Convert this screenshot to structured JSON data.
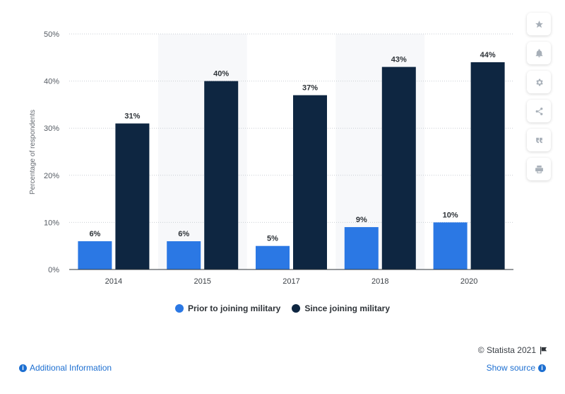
{
  "chart_data": {
    "type": "bar",
    "categories": [
      "2014",
      "2015",
      "2017",
      "2018",
      "2020"
    ],
    "series": [
      {
        "name": "Prior to joining military",
        "values": [
          6,
          6,
          5,
          9,
          10
        ],
        "color": "#2b78e4"
      },
      {
        "name": "Since joining military",
        "values": [
          31,
          40,
          37,
          43,
          44
        ],
        "color": "#0e2641"
      }
    ],
    "data_labels": [
      [
        "6%",
        "6%",
        "5%",
        "9%",
        "10%"
      ],
      [
        "31%",
        "40%",
        "37%",
        "43%",
        "44%"
      ]
    ],
    "y_ticks": [
      "0%",
      "10%",
      "20%",
      "30%",
      "40%",
      "50%"
    ],
    "ylim": [
      0,
      50
    ],
    "ylabel": "Percentage of respondents",
    "xlabel": "",
    "title": "",
    "grid": "horizontal dotted",
    "legend_position": "bottom-center"
  },
  "legend": {
    "items": [
      {
        "label": "Prior to joining military",
        "color": "#2b78e4"
      },
      {
        "label": "Since joining military",
        "color": "#0e2641"
      }
    ]
  },
  "toolbar": {
    "icons": [
      "star-icon",
      "bell-icon",
      "gear-icon",
      "share-icon",
      "quote-icon",
      "print-icon"
    ]
  },
  "footer": {
    "credit": "© Statista 2021",
    "additional_info": "Additional Information",
    "show_source": "Show source"
  }
}
